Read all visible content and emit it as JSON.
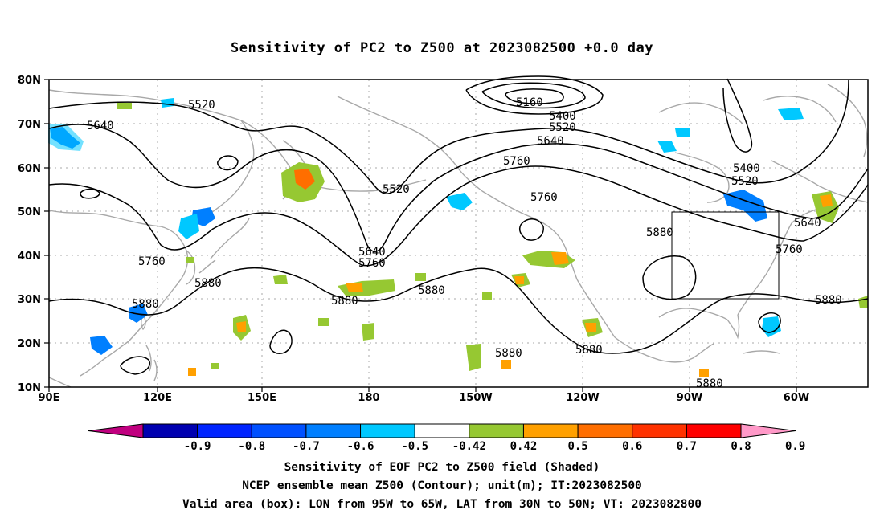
{
  "title": "Sensitivity of PC2 to Z500 at 2023082500 +0.0 day",
  "lat_labels": [
    "80N",
    "70N",
    "60N",
    "50N",
    "40N",
    "30N",
    "20N",
    "10N"
  ],
  "lon_labels": [
    "90E",
    "120E",
    "150E",
    "180",
    "150W",
    "120W",
    "90W",
    "60W"
  ],
  "contour_labels": [
    "5520",
    "5640",
    "5160",
    "5400",
    "5520",
    "5640",
    "5760",
    "5520",
    "5760",
    "5400",
    "5520",
    "5640",
    "5760",
    "5760",
    "5640",
    "5760",
    "5880",
    "5880",
    "5880",
    "5880",
    "5880",
    "5880",
    "5880",
    "5880",
    "5880"
  ],
  "colorbar": {
    "labels": [
      "-0.9",
      "-0.8",
      "-0.7",
      "-0.6",
      "-0.5",
      "-0.42",
      "0.42",
      "0.5",
      "0.6",
      "0.7",
      "0.8",
      "0.9"
    ],
    "colors": [
      "#c0007f",
      "#0000b0",
      "#0024ff",
      "#0050ff",
      "#007fff",
      "#00c8ff",
      "#ffffff",
      "#96c832",
      "#ffa000",
      "#ff6e00",
      "#ff3200",
      "#ff0000",
      "#ff99c8"
    ]
  },
  "valid_box": {
    "lon_min": "95W",
    "lon_max": "65W",
    "lat_min": "30N",
    "lat_max": "50N"
  },
  "footer": {
    "line1": "Sensitivity of EOF PC2 to Z500 field (Shaded)",
    "line2": "NCEP ensemble mean Z500 (Contour); unit(m); IT:2023082500",
    "line3": "Valid area (box): LON from 95W to 65W, LAT from 30N to 50N; VT: 2023082800"
  }
}
